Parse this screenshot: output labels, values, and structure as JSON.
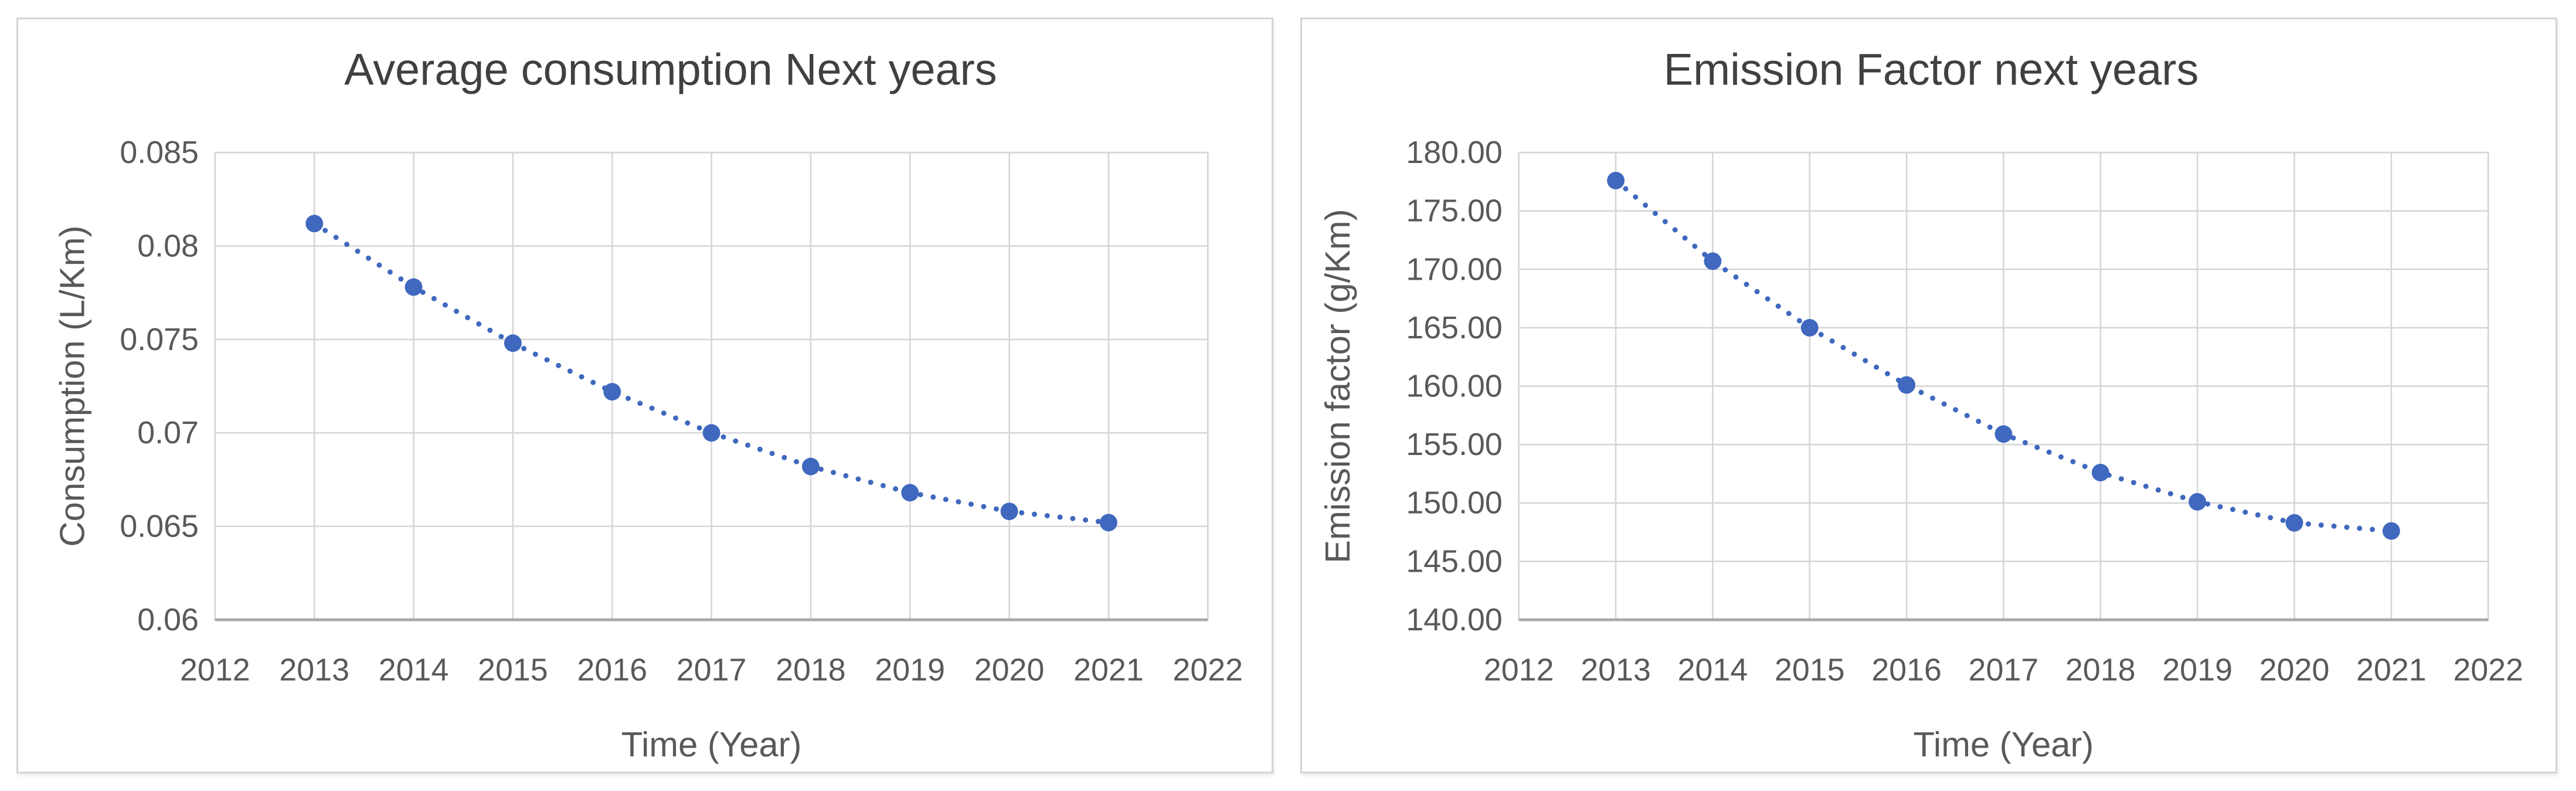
{
  "page": {
    "background": "#ffffff",
    "card_border_color": "#d4d4d4",
    "gridline_color": "#d6d6d6",
    "axis_line_color": "#a9a9a9",
    "title_color": "#404040",
    "tick_color": "#595959"
  },
  "chart_data": [
    {
      "type": "scatter",
      "title": "Average consumption Next years",
      "xlabel": "Time (Year)",
      "ylabel": "Consumption (L/Km)",
      "x": [
        2013,
        2014,
        2015,
        2016,
        2017,
        2018,
        2019,
        2020,
        2021
      ],
      "y": [
        0.0812,
        0.0778,
        0.0748,
        0.0722,
        0.07,
        0.0682,
        0.0668,
        0.0658,
        0.0652
      ],
      "xlim": [
        2012,
        2022
      ],
      "ylim": [
        0.06,
        0.085
      ],
      "xticks": [
        2012,
        2013,
        2014,
        2015,
        2016,
        2017,
        2018,
        2019,
        2020,
        2021,
        2022
      ],
      "xtick_labels": [
        "2012",
        "2013",
        "2014",
        "2015",
        "2016",
        "2017",
        "2018",
        "2019",
        "2020",
        "2021",
        "2022"
      ],
      "ytick_values": [
        0.06,
        0.065,
        0.07,
        0.075,
        0.08,
        0.085
      ],
      "ytick_labels": [
        "0.06",
        "0.065",
        "0.07",
        "0.075",
        "0.08",
        "0.085"
      ],
      "grid": true,
      "legend": false,
      "line_style": "dotted",
      "marker": "circle",
      "marker_color": "#3f68be",
      "line_color": "#3f68be"
    },
    {
      "type": "scatter",
      "title": "Emission Factor next years",
      "xlabel": "Time (Year)",
      "ylabel": "Emission factor (g/Km)",
      "x": [
        2013,
        2014,
        2015,
        2016,
        2017,
        2018,
        2019,
        2020,
        2021
      ],
      "y": [
        177.6,
        170.7,
        165.0,
        160.1,
        155.9,
        152.6,
        150.1,
        148.3,
        147.6
      ],
      "xlim": [
        2012,
        2022
      ],
      "ylim": [
        140,
        180
      ],
      "xticks": [
        2012,
        2013,
        2014,
        2015,
        2016,
        2017,
        2018,
        2019,
        2020,
        2021,
        2022
      ],
      "xtick_labels": [
        "2012",
        "2013",
        "2014",
        "2015",
        "2016",
        "2017",
        "2018",
        "2019",
        "2020",
        "2021",
        "2022"
      ],
      "ytick_values": [
        140,
        145,
        150,
        155,
        160,
        165,
        170,
        175,
        180
      ],
      "ytick_labels": [
        "140.00",
        "145.00",
        "150.00",
        "155.00",
        "160.00",
        "165.00",
        "170.00",
        "175.00",
        "180.00"
      ],
      "grid": true,
      "legend": false,
      "line_style": "dotted",
      "marker": "circle",
      "marker_color": "#3f68be",
      "line_color": "#3f68be"
    }
  ]
}
